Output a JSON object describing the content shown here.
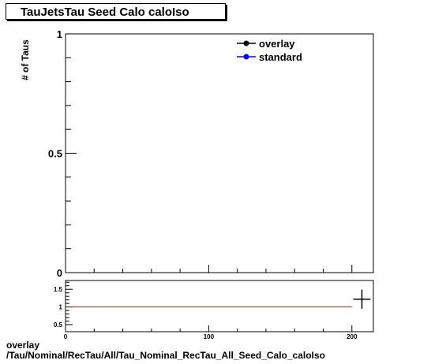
{
  "chart_data": [
    {
      "type": "scatter",
      "title": "TauJetsTau Seed Calo caloIso",
      "ylabel": "# of Taus",
      "xlim": [
        0,
        215
      ],
      "ylim": [
        0,
        1
      ],
      "yticks": [
        "0",
        "0.5",
        "1"
      ],
      "grid": false,
      "legend_position": "top-right",
      "series": [
        {
          "name": "overlay",
          "color": "#000000",
          "points": []
        },
        {
          "name": "standard",
          "color": "#0000ff",
          "points": []
        }
      ]
    },
    {
      "type": "scatter",
      "xlim": [
        0,
        215
      ],
      "ylim": [
        0.3,
        1.75
      ],
      "xticks": [
        "0",
        "100",
        "200"
      ],
      "yticks": [
        "0.5",
        "1",
        "1.5"
      ],
      "reference_line": {
        "y": 1,
        "x_start": 0,
        "x_end": 200,
        "color": "#b22222"
      },
      "points": [
        {
          "x": 207,
          "y": 1.22,
          "xerr": 6,
          "yerr": 0.27
        }
      ]
    }
  ],
  "caption": {
    "line1": "overlay",
    "line2": "/Tau/Nominal/RecTau/All/Tau_Nominal_RecTau_All_Seed_Calo_caloIso"
  }
}
